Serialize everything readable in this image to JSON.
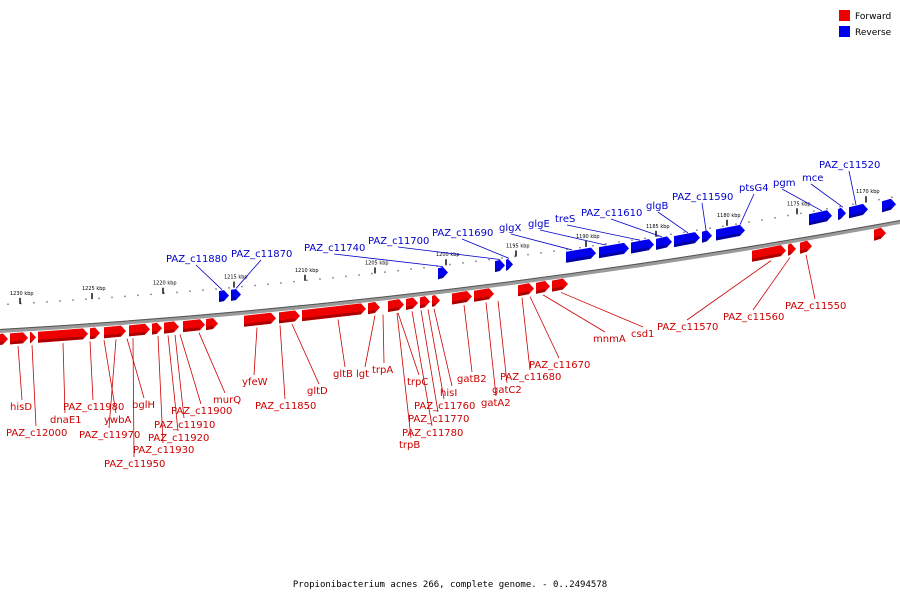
{
  "legend": {
    "forward": {
      "label": "Forward",
      "color": "#ee0000"
    },
    "reverse": {
      "label": "Reverse",
      "color": "#0000ee"
    }
  },
  "caption": "Propionibacterium acnes 266, complete genome. - 0..2494578",
  "scale_labels": [
    "1230 kbp",
    "1225 kbp",
    "1220 kbp",
    "1215 kbp",
    "1210 kbp",
    "1205 kbp",
    "1200 kbp",
    "1195 kbp",
    "1190 kbp",
    "1185 kbp",
    "1180 kbp",
    "1175 kbp",
    "1170 kbp"
  ],
  "reverse_genes": [
    "PAZ_c11880",
    "PAZ_c11870",
    "PAZ_c11740",
    "PAZ_c11700",
    "PAZ_c11690",
    "glgX",
    "glgE",
    "treS",
    "PAZ_c11610",
    "glgB",
    "PAZ_c11590",
    "ptsG4",
    "pgm",
    "mce",
    "PAZ_c11520"
  ],
  "forward_genes": [
    "hisD",
    "PAZ_c12000",
    "dnaE1",
    "PAZ_c11980",
    "ywbA",
    "PAZ_c11970",
    "bglH",
    "PAZ_c11950",
    "PAZ_c11930",
    "PAZ_c11920",
    "PAZ_c11910",
    "PAZ_c11900",
    "murQ",
    "yfeW",
    "PAZ_c11850",
    "gltD",
    "gltB",
    "lgt",
    "trpA",
    "trpC",
    "trpB",
    "PAZ_c11780",
    "PAZ_c11770",
    "PAZ_c11760",
    "hisI",
    "gatB2",
    "gatA2",
    "gatC2",
    "PAZ_c11680",
    "PAZ_c11670",
    "mnmA",
    "csd1",
    "PAZ_c11570",
    "PAZ_c11560",
    "PAZ_c11550"
  ]
}
